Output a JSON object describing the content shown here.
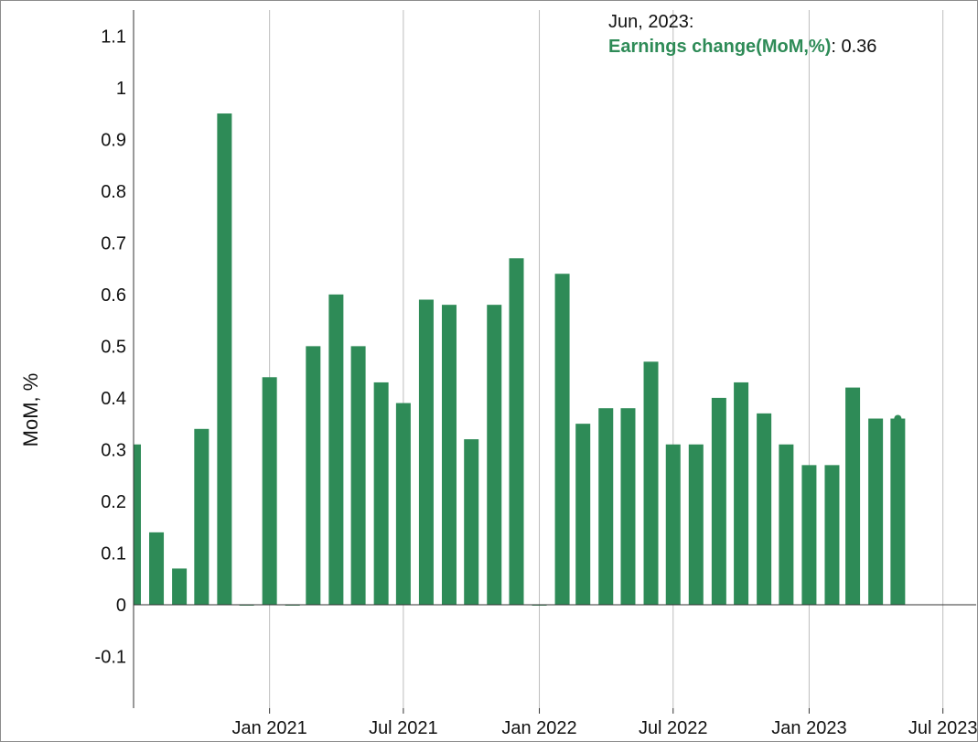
{
  "chart_data": {
    "type": "bar",
    "ylabel": "MoM, %",
    "xlabel": "",
    "ylim": [
      -0.2,
      1.15
    ],
    "xlim": [
      "2020-07-01",
      "2023-08-15"
    ],
    "y_ticks": [
      -0.1,
      0,
      0.1,
      0.2,
      0.3,
      0.4,
      0.5,
      0.6,
      0.7,
      0.8,
      0.9,
      1,
      1.1
    ],
    "y_tick_labels": [
      "-0.1",
      "0",
      "0.1",
      "0.2",
      "0.3",
      "0.4",
      "0.5",
      "0.6",
      "0.7",
      "0.8",
      "0.9",
      "1",
      "1.1"
    ],
    "x_ticks": [
      {
        "date": "2021-01-01",
        "label": "Jan 2021"
      },
      {
        "date": "2021-07-01",
        "label": "Jul 2021"
      },
      {
        "date": "2022-01-01",
        "label": "Jan 2022"
      },
      {
        "date": "2022-07-01",
        "label": "Jul 2022"
      },
      {
        "date": "2023-01-01",
        "label": "Jan 2023"
      },
      {
        "date": "2023-07-01",
        "label": "Jul 2023"
      }
    ],
    "grid": {
      "vertical": true,
      "horizontal": false
    },
    "color": "#2e8b57",
    "series": [
      {
        "name": "Earnings change(MoM,%)",
        "points": [
          {
            "date": "2020-07",
            "value": 0.31
          },
          {
            "date": "2020-08",
            "value": 0.14
          },
          {
            "date": "2020-09",
            "value": 0.07
          },
          {
            "date": "2020-10",
            "value": 0.34
          },
          {
            "date": "2020-11",
            "value": 0.95
          },
          {
            "date": "2020-12",
            "value": 0.0
          },
          {
            "date": "2021-01",
            "value": 0.44
          },
          {
            "date": "2021-02",
            "value": 0.0
          },
          {
            "date": "2021-03",
            "value": 0.5
          },
          {
            "date": "2021-04",
            "value": 0.6
          },
          {
            "date": "2021-05",
            "value": 0.5
          },
          {
            "date": "2021-06",
            "value": 0.43
          },
          {
            "date": "2021-07",
            "value": 0.39
          },
          {
            "date": "2021-08",
            "value": 0.59
          },
          {
            "date": "2021-09",
            "value": 0.58
          },
          {
            "date": "2021-10",
            "value": 0.32
          },
          {
            "date": "2021-11",
            "value": 0.58
          },
          {
            "date": "2021-12",
            "value": 0.67
          },
          {
            "date": "2022-01",
            "value": 0.0
          },
          {
            "date": "2022-02",
            "value": 0.64
          },
          {
            "date": "2022-03",
            "value": 0.35
          },
          {
            "date": "2022-04",
            "value": 0.38
          },
          {
            "date": "2022-05",
            "value": 0.38
          },
          {
            "date": "2022-06",
            "value": 0.47
          },
          {
            "date": "2022-07",
            "value": 0.31
          },
          {
            "date": "2022-08",
            "value": 0.31
          },
          {
            "date": "2022-09",
            "value": 0.4
          },
          {
            "date": "2022-10",
            "value": 0.43
          },
          {
            "date": "2022-11",
            "value": 0.37
          },
          {
            "date": "2022-12",
            "value": 0.31
          },
          {
            "date": "2023-01",
            "value": 0.27
          },
          {
            "date": "2023-02",
            "value": 0.27
          },
          {
            "date": "2023-03",
            "value": 0.42
          },
          {
            "date": "2023-04",
            "value": 0.36
          },
          {
            "date": "2023-05",
            "value": 0.36
          }
        ]
      }
    ],
    "tooltip": {
      "date_label": "Jun, 2023:",
      "series_label": "Earnings change(MoM,%)",
      "value": "0.36"
    }
  }
}
